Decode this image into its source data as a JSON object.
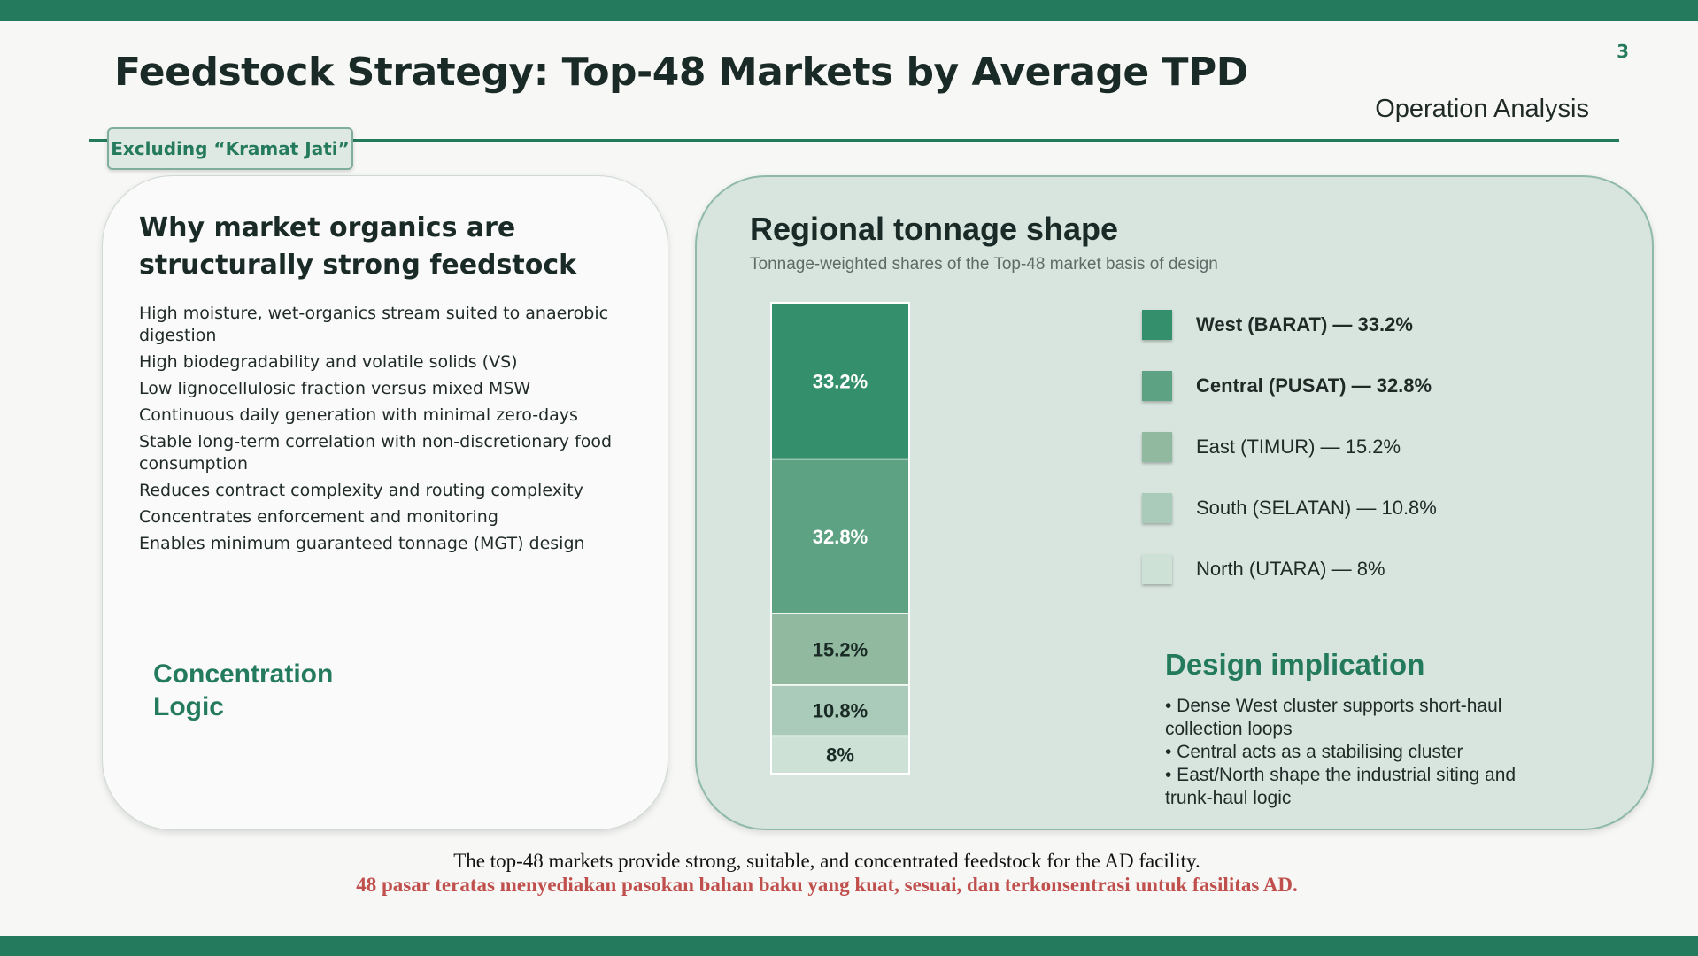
{
  "page_number": "3",
  "title": "Feedstock Strategy: Top-48 Markets by Average TPD",
  "subtitle": "Operation Analysis",
  "tag": "Excluding “Kramat Jati”",
  "left_card": {
    "heading": "Why market organics are structurally strong feedstock",
    "bullets": [
      "High moisture, wet-organics stream suited to anaerobic digestion",
      "High biodegradability and volatile solids (VS)",
      "Low lignocellulosic fraction versus mixed MSW",
      "Continuous daily generation with minimal zero-days",
      "Stable long-term correlation with non-discretionary food consumption",
      "Reduces contract complexity and routing complexity",
      "Concentrates enforcement and monitoring",
      "Enables minimum guaranteed tonnage (MGT) design"
    ],
    "concentration_line1": "Concentration",
    "concentration_line2": "Logic"
  },
  "right_card": {
    "heading": "Regional tonnage shape",
    "subheading": "Tonnage-weighted shares of the Top-48 market basis of design",
    "legend": [
      {
        "label": "West (BARAT) — 33.2%",
        "bold": true,
        "color": "#348f6c"
      },
      {
        "label": "Central (PUSAT) — 32.8%",
        "bold": true,
        "color": "#5da282"
      },
      {
        "label": "East (TIMUR) — 15.2%",
        "bold": false,
        "color": "#90b9a0"
      },
      {
        "label": "South (SELATAN) — 10.8%",
        "bold": false,
        "color": "#aacbb9"
      },
      {
        "label": "North (UTARA) — 8%",
        "bold": false,
        "color": "#cde1d6"
      }
    ],
    "implication_title": "Design implication",
    "implications": [
      "• Dense West cluster supports short-haul collection loops",
      "• Central acts as a stabilising cluster",
      "• East/North shape the industrial siting and trunk-haul logic"
    ]
  },
  "chart_data": {
    "type": "bar",
    "subtype": "stacked-100",
    "title": "Regional tonnage shape",
    "unit": "%",
    "categories": [
      "West (BARAT)",
      "Central (PUSAT)",
      "East (TIMUR)",
      "South (SELATAN)",
      "North (UTARA)"
    ],
    "values": [
      33.2,
      32.8,
      15.2,
      10.8,
      8
    ],
    "labels": [
      "33.2%",
      "32.8%",
      "15.2%",
      "10.8%",
      "8%"
    ],
    "colors": [
      "#348f6c",
      "#5da282",
      "#90b9a0",
      "#aacbb9",
      "#cde1d6"
    ],
    "label_colors": [
      "#ffffff",
      "#ffffff",
      "#1a2a26",
      "#1a2a26",
      "#1a2a26"
    ]
  },
  "footer": {
    "english": "The top-48 markets provide strong, suitable, and concentrated feedstock for the AD facility.",
    "indonesian": "48 pasar teratas menyediakan pasokan bahan baku yang kuat, sesuai, dan terkonsentrasi untuk fasilitas AD."
  }
}
